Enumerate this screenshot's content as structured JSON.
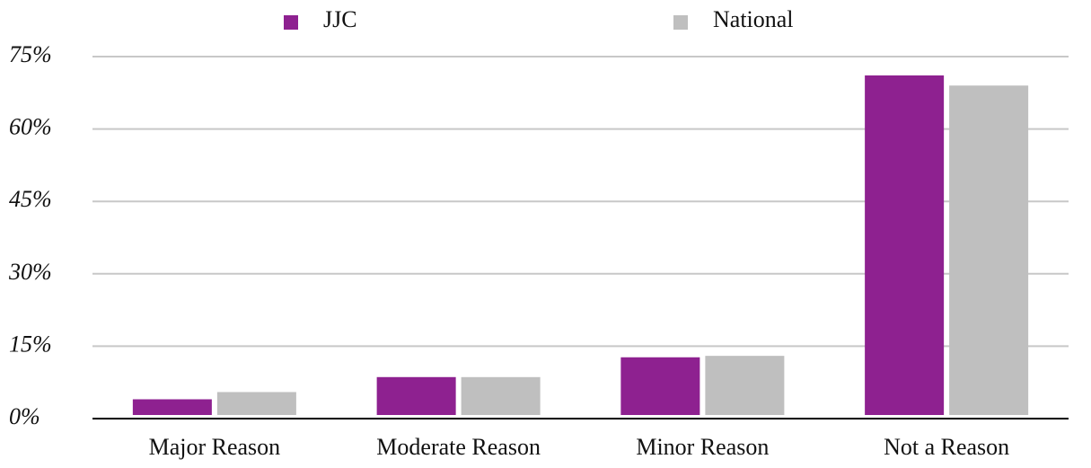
{
  "chart_data": {
    "type": "bar",
    "categories": [
      "Major Reason",
      "Moderate Reason",
      "Minor Reason",
      "Not a Reason"
    ],
    "series": [
      {
        "name": "JJC",
        "color": "#8e2190",
        "values": [
          4,
          8.6,
          12.7,
          71.1
        ]
      },
      {
        "name": "National",
        "color": "#bfbfbf",
        "values": [
          5.5,
          8.6,
          13,
          69
        ]
      }
    ],
    "ylim": [
      0,
      75
    ],
    "yticks": [
      {
        "value": 0,
        "label": "0%"
      },
      {
        "value": 15,
        "label": "15%"
      },
      {
        "value": 30,
        "label": "30%"
      },
      {
        "value": 45,
        "label": "45%"
      },
      {
        "value": 60,
        "label": "60%"
      },
      {
        "value": 75,
        "label": "75%"
      }
    ],
    "grid": true,
    "legend": "top"
  }
}
